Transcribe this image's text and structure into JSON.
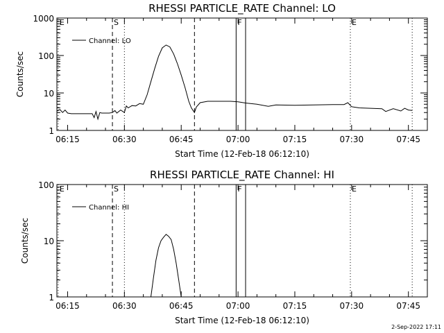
{
  "footer": {
    "timestamp": "2-Sep-2022 17:11"
  },
  "chart_data": [
    {
      "type": "line",
      "title": "RHESSI PARTICLE_RATE Channel: LO",
      "xlabel": "Start Time (12-Feb-18 06:12:10)",
      "ylabel": "Counts/sec",
      "yscale": "log",
      "xlim": [
        "06:12:10",
        "07:50:00"
      ],
      "ylim": [
        1,
        1000
      ],
      "x_ticks": [
        "06:15",
        "06:30",
        "06:45",
        "07:00",
        "07:15",
        "07:30",
        "07:45"
      ],
      "y_ticks": [
        "1",
        "10",
        "100",
        "1000"
      ],
      "legend": {
        "position": "top-left",
        "entries": [
          "Channel: LO"
        ]
      },
      "markers": [
        {
          "label": "E",
          "time": "06:12:30",
          "style": "dotted"
        },
        {
          "label": "S",
          "time": "06:26:50",
          "style": "dashed"
        },
        {
          "label": "",
          "time": "06:30:00",
          "style": "dotted"
        },
        {
          "label": "",
          "time": "06:48:30",
          "style": "dashed"
        },
        {
          "label": "F",
          "time": "06:59:30",
          "style": "solid"
        },
        {
          "label": "",
          "time": "07:02:00",
          "style": "solid"
        },
        {
          "label": "E",
          "time": "07:29:40",
          "style": "dotted"
        },
        {
          "label": "",
          "time": "07:46:00",
          "style": "dotted"
        }
      ],
      "series": [
        {
          "name": "Channel: LO",
          "points": [
            [
              "06:12:10",
              3.3
            ],
            [
              "06:13:00",
              3.6
            ],
            [
              "06:13:40",
              3.0
            ],
            [
              "06:14:20",
              3.5
            ],
            [
              "06:15:00",
              2.9
            ],
            [
              "06:16:00",
              2.8
            ],
            [
              "06:18:00",
              2.8
            ],
            [
              "06:20:00",
              2.8
            ],
            [
              "06:21:30",
              2.8
            ],
            [
              "06:22:00",
              2.2
            ],
            [
              "06:22:30",
              3.2
            ],
            [
              "06:23:00",
              2.0
            ],
            [
              "06:23:30",
              3.0
            ],
            [
              "06:24:00",
              2.9
            ],
            [
              "06:26:00",
              2.9
            ],
            [
              "06:26:50",
              3.0
            ],
            [
              "06:27:30",
              3.4
            ],
            [
              "06:28:00",
              2.9
            ],
            [
              "06:29:00",
              3.5
            ],
            [
              "06:30:00",
              3.0
            ],
            [
              "06:30:30",
              4.5
            ],
            [
              "06:31:00",
              4.0
            ],
            [
              "06:32:00",
              4.6
            ],
            [
              "06:33:00",
              4.5
            ],
            [
              "06:34:00",
              5.2
            ],
            [
              "06:35:00",
              5.0
            ],
            [
              "06:36:00",
              9
            ],
            [
              "06:37:00",
              20
            ],
            [
              "06:38:00",
              45
            ],
            [
              "06:39:00",
              95
            ],
            [
              "06:40:00",
              160
            ],
            [
              "06:41:00",
              190
            ],
            [
              "06:42:00",
              170
            ],
            [
              "06:43:00",
              110
            ],
            [
              "06:44:00",
              60
            ],
            [
              "06:45:00",
              30
            ],
            [
              "06:46:00",
              14
            ],
            [
              "06:47:00",
              6
            ],
            [
              "06:47:40",
              4.0
            ],
            [
              "06:48:30",
              3.0
            ],
            [
              "06:49:00",
              4.2
            ],
            [
              "06:50:00",
              5.5
            ],
            [
              "06:52:00",
              6.0
            ],
            [
              "06:55:00",
              6.0
            ],
            [
              "06:58:00",
              6.0
            ],
            [
              "07:00:00",
              5.8
            ],
            [
              "07:02:00",
              5.4
            ],
            [
              "07:05:00",
              5.0
            ],
            [
              "07:08:00",
              4.4
            ],
            [
              "07:10:00",
              4.8
            ],
            [
              "07:15:00",
              4.7
            ],
            [
              "07:20:00",
              4.8
            ],
            [
              "07:25:00",
              4.9
            ],
            [
              "07:28:00",
              4.9
            ],
            [
              "07:29:00",
              5.5
            ],
            [
              "07:30:00",
              4.3
            ],
            [
              "07:32:00",
              4.0
            ],
            [
              "07:35:00",
              3.9
            ],
            [
              "07:38:00",
              3.8
            ],
            [
              "07:39:00",
              3.2
            ],
            [
              "07:41:00",
              3.8
            ],
            [
              "07:43:00",
              3.3
            ],
            [
              "07:44:00",
              3.9
            ],
            [
              "07:45:00",
              3.5
            ],
            [
              "07:46:00",
              3.4
            ]
          ]
        }
      ]
    },
    {
      "type": "line",
      "title": "RHESSI PARTICLE_RATE Channel: HI",
      "xlabel": "Start Time (12-Feb-18 06:12:10)",
      "ylabel": "Counts/sec",
      "yscale": "log",
      "xlim": [
        "06:12:10",
        "07:50:00"
      ],
      "ylim": [
        1,
        100
      ],
      "x_ticks": [
        "06:15",
        "06:30",
        "06:45",
        "07:00",
        "07:15",
        "07:30",
        "07:45"
      ],
      "y_ticks": [
        "1",
        "10",
        "100"
      ],
      "legend": {
        "position": "top-left",
        "entries": [
          "Channel: HI"
        ]
      },
      "markers": [
        {
          "label": "E",
          "time": "06:12:30",
          "style": "dotted"
        },
        {
          "label": "S",
          "time": "06:26:50",
          "style": "dashed"
        },
        {
          "label": "",
          "time": "06:30:00",
          "style": "dotted"
        },
        {
          "label": "",
          "time": "06:48:30",
          "style": "dashed"
        },
        {
          "label": "F",
          "time": "06:59:30",
          "style": "solid"
        },
        {
          "label": "",
          "time": "07:02:00",
          "style": "solid"
        },
        {
          "label": "E",
          "time": "07:29:40",
          "style": "dotted"
        },
        {
          "label": "",
          "time": "07:46:00",
          "style": "dotted"
        }
      ],
      "series": [
        {
          "name": "Channel: HI",
          "points": [
            [
              "06:37:00",
              1.0
            ],
            [
              "06:37:40",
              2.2
            ],
            [
              "06:38:20",
              4.5
            ],
            [
              "06:39:00",
              7.5
            ],
            [
              "06:39:40",
              10
            ],
            [
              "06:40:20",
              11.5
            ],
            [
              "06:41:00",
              13
            ],
            [
              "06:41:40",
              12
            ],
            [
              "06:42:20",
              10.5
            ],
            [
              "06:43:00",
              7
            ],
            [
              "06:43:40",
              4
            ],
            [
              "06:44:20",
              2.0
            ],
            [
              "06:45:00",
              1.0
            ]
          ]
        }
      ]
    }
  ]
}
